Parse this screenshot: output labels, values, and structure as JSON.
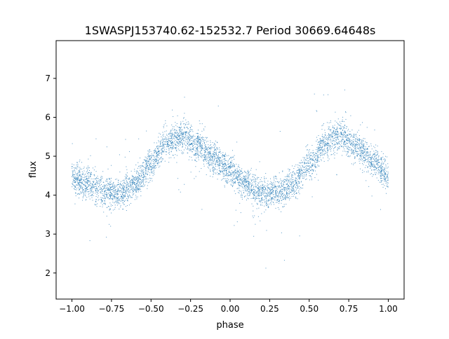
{
  "chart_data": {
    "type": "scatter",
    "title": "1SWASPJ153740.62-152532.7 Period 30669.64648s",
    "xlabel": "phase",
    "ylabel": "flux",
    "xlim": [
      -1.1,
      1.1
    ],
    "ylim": [
      1.33,
      7.97
    ],
    "xticks": [
      "−1.00",
      "−0.75",
      "−0.50",
      "−0.25",
      "0.00",
      "0.25",
      "0.50",
      "0.75",
      "1.00"
    ],
    "xtick_values": [
      -1.0,
      -0.75,
      -0.5,
      -0.25,
      0.0,
      0.25,
      0.5,
      0.75,
      1.0
    ],
    "yticks": [
      "2",
      "3",
      "4",
      "5",
      "6",
      "7"
    ],
    "ytick_values": [
      2,
      3,
      4,
      5,
      6,
      7
    ],
    "grid": false,
    "marker_color": "#1f77b4",
    "series": [
      {
        "x": [
          -1.0,
          -0.9,
          -0.8,
          -0.7,
          -0.6,
          -0.5,
          -0.4,
          -0.3,
          -0.2,
          -0.1,
          0.0,
          0.1,
          0.2,
          0.3,
          0.4,
          0.5,
          0.6,
          0.7,
          0.8,
          0.9,
          1.0
        ],
        "y": [
          4.45,
          4.3,
          4.1,
          4.05,
          4.3,
          4.8,
          5.35,
          5.55,
          5.25,
          4.95,
          4.6,
          4.3,
          4.05,
          4.05,
          4.3,
          4.8,
          5.35,
          5.55,
          5.25,
          4.9,
          4.5
        ]
      }
    ]
  }
}
